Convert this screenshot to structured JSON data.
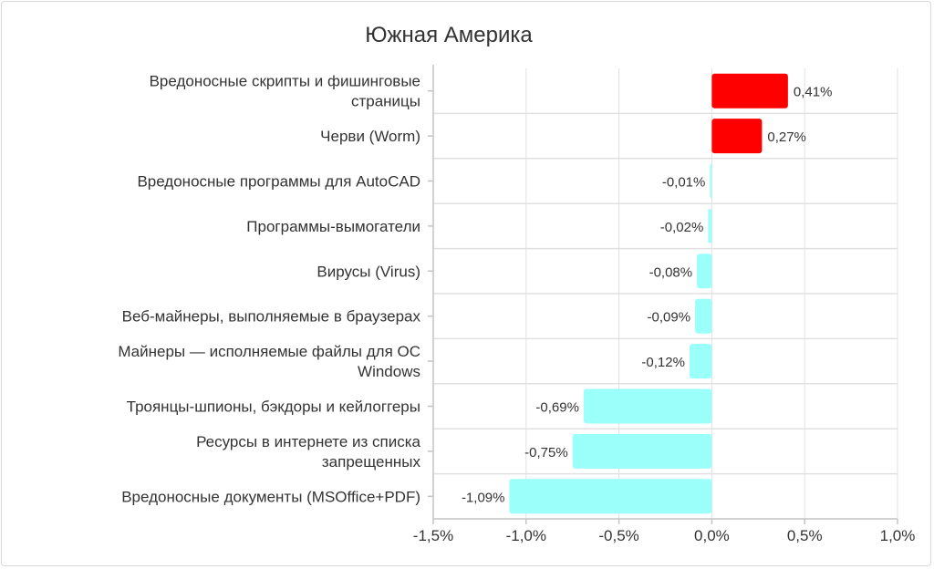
{
  "chart_data": {
    "type": "bar",
    "orientation": "horizontal",
    "title": "Южная Америка",
    "categories": [
      [
        "Вредоносные скрипты и фишинговые",
        "страницы"
      ],
      [
        "Черви (Worm)"
      ],
      [
        "Вредоносные программы для AutoCAD"
      ],
      [
        "Программы-вымогатели"
      ],
      [
        "Вирусы (Virus)"
      ],
      [
        "Веб-майнеры, выполняемые в браузерах"
      ],
      [
        "Майнеры — исполняемые файлы для ОС",
        "Windows"
      ],
      [
        "Троянцы-шпионы, бэкдоры и кейлоггеры"
      ],
      [
        "Ресурсы в интернете из списка",
        "запрещенных"
      ],
      [
        "Вредоносные документы (MSOffice+PDF)"
      ]
    ],
    "values": [
      0.41,
      0.27,
      -0.01,
      -0.02,
      -0.08,
      -0.09,
      -0.12,
      -0.69,
      -0.75,
      -1.09
    ],
    "data_labels": [
      "0,41%",
      "0,27%",
      "-0,01%",
      "-0,02%",
      "-0,08%",
      "-0,09%",
      "-0,12%",
      "-0,69%",
      "-0,75%",
      "-1,09%"
    ],
    "xlim": [
      -1.5,
      1.0
    ],
    "xticks": [
      -1.5,
      -1.0,
      -0.5,
      0,
      0.5,
      1.0
    ],
    "xtick_labels": [
      "-1,5%",
      "-1,0%",
      "-0,5%",
      "0,0%",
      "0,5%",
      "1,0%"
    ],
    "xlabel": "",
    "ylabel": "",
    "grid": true,
    "colors": {
      "positive": "#ff0000",
      "negative": "#9bfffa",
      "grid": "#e0e0e0",
      "axis": "#c4c4c4"
    }
  }
}
